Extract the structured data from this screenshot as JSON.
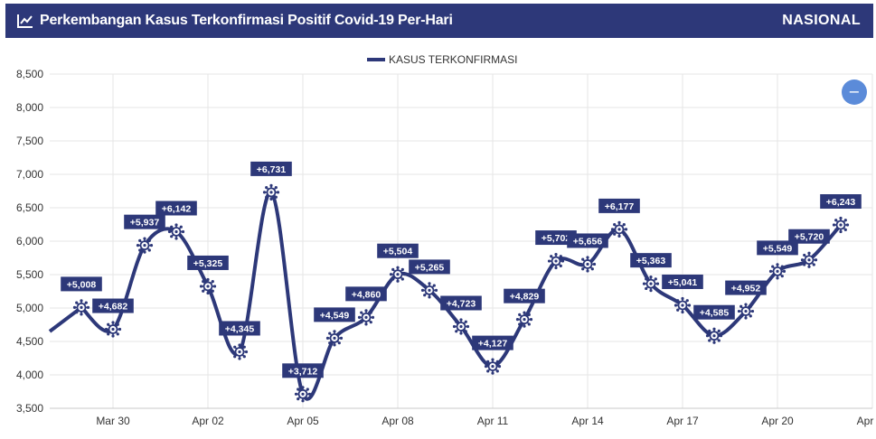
{
  "header": {
    "title": "Perkembangan Kasus Terkonfirmasi Positif Covid-19 Per-Hari",
    "region": "NASIONAL",
    "icon": "line-chart-icon"
  },
  "colors": {
    "header_bg": "#2d3879",
    "series": "#2d3879",
    "button": "#5b8bd9",
    "grid": "#e6e6e6"
  },
  "chart_data": {
    "type": "line",
    "legend": {
      "label": "KASUS TERKONFIRMASI",
      "position": "top-center"
    },
    "ylim": [
      3500,
      8500
    ],
    "yticks": [
      3500,
      4000,
      4500,
      5000,
      5500,
      6000,
      6500,
      7000,
      7500,
      8000,
      8500
    ],
    "ytick_labels": [
      "3,500",
      "4,000",
      "4,500",
      "5,000",
      "5,500",
      "6,000",
      "6,500",
      "7,000",
      "7,500",
      "8,000",
      "8,500"
    ],
    "xtick_labels": [
      "Mar 30",
      "Apr 02",
      "Apr 05",
      "Apr 08",
      "Apr 11",
      "Apr 14",
      "Apr 17",
      "Apr 20",
      "Apr"
    ],
    "xtick_dates": [
      "2021-03-30",
      "2021-04-02",
      "2021-04-05",
      "2021-04-08",
      "2021-04-11",
      "2021-04-14",
      "2021-04-17",
      "2021-04-20",
      "2021-04-23"
    ],
    "grid": true,
    "marker": "virus-icon",
    "series": [
      {
        "name": "KASUS TERKONFIRMASI",
        "points": [
          {
            "date": "2021-03-29",
            "value": 5008,
            "label": "+5,008"
          },
          {
            "date": "2021-03-30",
            "value": 4682,
            "label": "+4,682"
          },
          {
            "date": "2021-03-31",
            "value": 5937,
            "label": "+5,937"
          },
          {
            "date": "2021-04-01",
            "value": 6142,
            "label": "+6,142"
          },
          {
            "date": "2021-04-02",
            "value": 5325,
            "label": "+5,325"
          },
          {
            "date": "2021-04-03",
            "value": 4345,
            "label": "+4,345"
          },
          {
            "date": "2021-04-04",
            "value": 6731,
            "label": "+6,731"
          },
          {
            "date": "2021-04-05",
            "value": 3712,
            "label": "+3,712"
          },
          {
            "date": "2021-04-06",
            "value": 4549,
            "label": "+4,549"
          },
          {
            "date": "2021-04-07",
            "value": 4860,
            "label": "+4,860"
          },
          {
            "date": "2021-04-08",
            "value": 5504,
            "label": "+5,504"
          },
          {
            "date": "2021-04-09",
            "value": 5265,
            "label": "+5,265"
          },
          {
            "date": "2021-04-10",
            "value": 4723,
            "label": "+4,723"
          },
          {
            "date": "2021-04-11",
            "value": 4127,
            "label": "+4,127"
          },
          {
            "date": "2021-04-12",
            "value": 4829,
            "label": "+4,829"
          },
          {
            "date": "2021-04-13",
            "value": 5702,
            "label": "+5,702"
          },
          {
            "date": "2021-04-14",
            "value": 5656,
            "label": "+5,656"
          },
          {
            "date": "2021-04-15",
            "value": 6177,
            "label": "+6,177"
          },
          {
            "date": "2021-04-16",
            "value": 5363,
            "label": "+5,363"
          },
          {
            "date": "2021-04-17",
            "value": 5041,
            "label": "+5,041"
          },
          {
            "date": "2021-04-18",
            "value": 4585,
            "label": "+4,585"
          },
          {
            "date": "2021-04-19",
            "value": 4952,
            "label": "+4,952"
          },
          {
            "date": "2021-04-20",
            "value": 5549,
            "label": "+5,549"
          },
          {
            "date": "2021-04-21",
            "value": 5720,
            "label": "+5,720"
          },
          {
            "date": "2021-04-22",
            "value": 6243,
            "label": "+6,243"
          }
        ]
      }
    ]
  },
  "collapse_button": {
    "icon": "minus-icon",
    "label": "−"
  }
}
